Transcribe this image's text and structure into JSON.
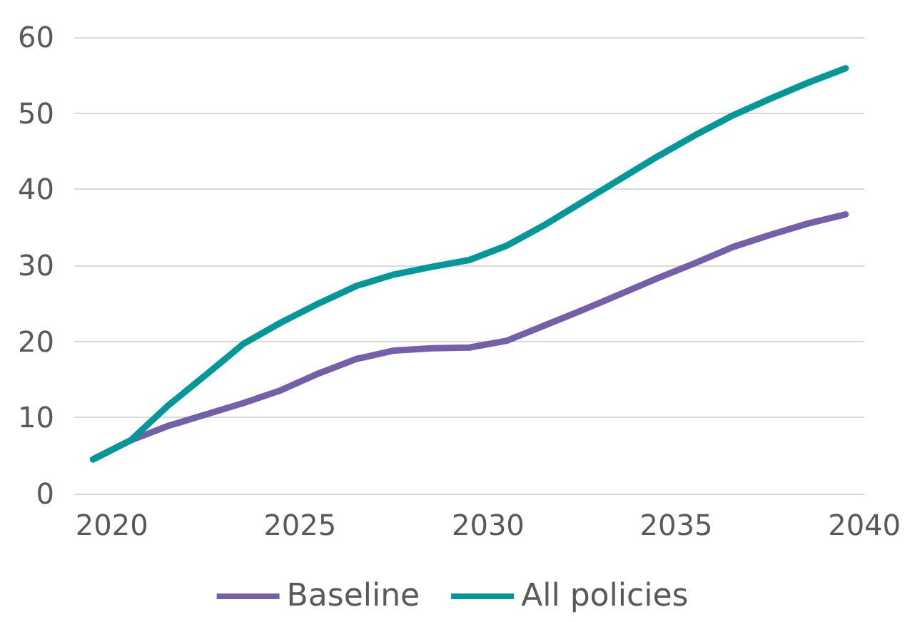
{
  "chart_data": {
    "type": "line",
    "x": [
      2019.5,
      2020.5,
      2021.5,
      2022.5,
      2023.5,
      2024.5,
      2025.5,
      2026.5,
      2027.5,
      2028.5,
      2029.5,
      2030.5,
      2031.5,
      2032.5,
      2033.5,
      2034.5,
      2035.5,
      2036.5,
      2037.5,
      2038.5,
      2039.5
    ],
    "series": [
      {
        "name": "Baseline",
        "color": "#7360a8",
        "values": [
          4.5,
          7.0,
          8.9,
          10.4,
          11.9,
          13.6,
          15.8,
          17.7,
          18.8,
          19.1,
          19.2,
          20.1,
          22.1,
          24.1,
          26.2,
          28.3,
          30.3,
          32.4,
          34.0,
          35.5,
          36.7
        ]
      },
      {
        "name": "All policies",
        "color": "#00969a",
        "values": [
          4.5,
          7.0,
          11.6,
          15.6,
          19.7,
          22.5,
          25.0,
          27.3,
          28.8,
          29.8,
          30.7,
          32.6,
          35.3,
          38.3,
          41.3,
          44.3,
          47.1,
          49.7,
          51.9,
          54.0,
          55.9
        ]
      }
    ],
    "xlim": [
      2019,
      2040
    ],
    "xticks": [
      2020,
      2025,
      2030,
      2035,
      2040
    ],
    "ylim": [
      0,
      60
    ],
    "yticks": [
      0,
      10,
      20,
      30,
      40,
      50,
      60
    ],
    "grid": "y",
    "legend": "bottom",
    "marker": "none",
    "line_style": "solid"
  }
}
